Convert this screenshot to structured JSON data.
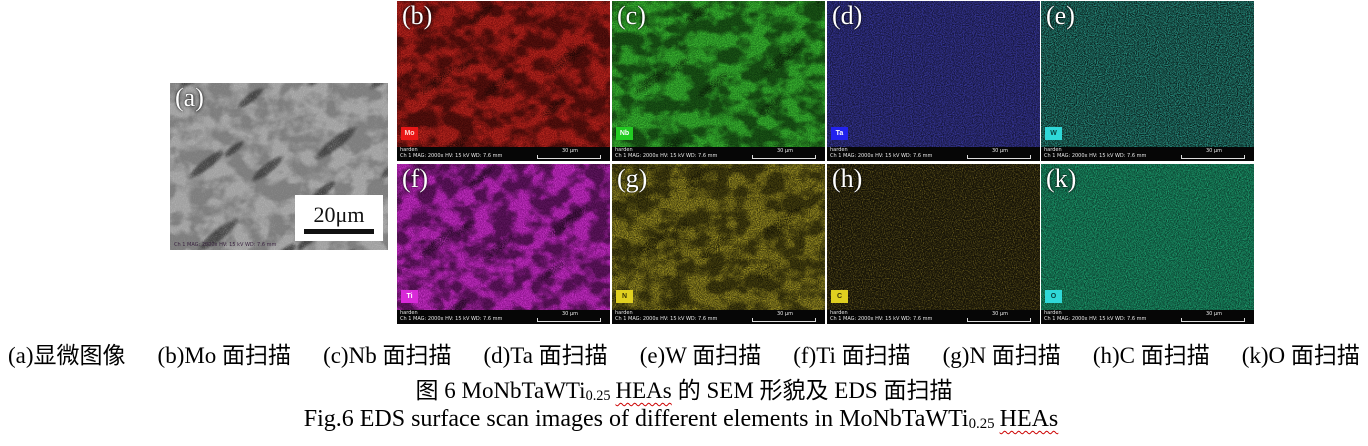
{
  "sem_panel": {
    "label": "(a)",
    "scale_bar_label": "20μm",
    "info_text": "Ch 1  MAG: 2000x  HV: 15 kV  WD: 7.6 mm",
    "base_color": "#a0a0a0"
  },
  "map_info": {
    "sample_label": "harden",
    "info_text": "Ch 1   MAG: 2000x   HV: 15 kV   WD: 7.6 mm",
    "scale_label": "30 μm"
  },
  "eds_panels": [
    {
      "id": "mo",
      "label": "(b)",
      "element": "Mo",
      "row": 0,
      "col": 0,
      "base": "#7c0e0e",
      "speck": "#e03c2c",
      "box_bg": "#e81616",
      "box_fg": "#ffd6d0",
      "dendrites": true,
      "mottled": true,
      "sparse": false
    },
    {
      "id": "nb",
      "label": "(c)",
      "element": "Nb",
      "row": 0,
      "col": 1,
      "base": "#1d7a1d",
      "speck": "#52d93e",
      "box_bg": "#22cc22",
      "box_fg": "#ffffff",
      "dendrites": true,
      "mottled": true,
      "sparse": false
    },
    {
      "id": "ta",
      "label": "(d)",
      "element": "Ta",
      "row": 0,
      "col": 2,
      "base": "#17173d",
      "speck": "#4a4ad2",
      "box_bg": "#2222ee",
      "box_fg": "#ffffff",
      "dendrites": false,
      "mottled": false,
      "sparse": false
    },
    {
      "id": "w",
      "label": "(e)",
      "element": "W",
      "row": 0,
      "col": 3,
      "base": "#0b2320",
      "speck": "#39cfb9",
      "box_bg": "#2fd8d8",
      "box_fg": "#06403c",
      "dendrites": false,
      "mottled": false,
      "sparse": false
    },
    {
      "id": "ti",
      "label": "(f)",
      "element": "Ti",
      "row": 1,
      "col": 0,
      "base": "#8d128d",
      "speck": "#e44ae4",
      "box_bg": "#d829d8",
      "box_fg": "#ffffff",
      "dendrites": true,
      "mottled": true,
      "sparse": false
    },
    {
      "id": "n",
      "label": "(g)",
      "element": "N",
      "row": 1,
      "col": 1,
      "base": "#403c0e",
      "speck": "#d9c730",
      "box_bg": "#e0d020",
      "box_fg": "#3a3504",
      "dendrites": true,
      "mottled": true,
      "sparse": false
    },
    {
      "id": "c",
      "label": "(h)",
      "element": "C",
      "row": 1,
      "col": 2,
      "base": "#161307",
      "speck": "#c9b23a",
      "box_bg": "#e0d020",
      "box_fg": "#3a3504",
      "dendrites": false,
      "mottled": false,
      "sparse": true
    },
    {
      "id": "o",
      "label": "(k)",
      "element": "O",
      "row": 1,
      "col": 3,
      "base": "#0c4231",
      "speck": "#27d190",
      "box_bg": "#2fd8d8",
      "box_fg": "#06403c",
      "dendrites": false,
      "mottled": false,
      "sparse": false
    }
  ],
  "captions": {
    "panel_labels": [
      "(a)显微图像",
      "(b)Mo 面扫描",
      "(c)Nb 面扫描",
      "(d)Ta 面扫描",
      "(e)W 面扫描",
      "(f)Ti 面扫描",
      "(g)N 面扫描",
      "(h)C 面扫描",
      "(k)O 面扫描"
    ],
    "zh": {
      "prefix": "图 6 MoNbTaWTi",
      "sub": "0.25",
      "heas": "HEAs",
      "suffix": "的 SEM 形貌及 EDS 面扫描"
    },
    "en": {
      "prefix": "Fig.6 EDS surface scan images of different elements in MoNbTaWTi",
      "sub": "0.25",
      "heas": "HEAs",
      "suffix": ""
    },
    "wavy_underline_color": "#cc0000"
  }
}
